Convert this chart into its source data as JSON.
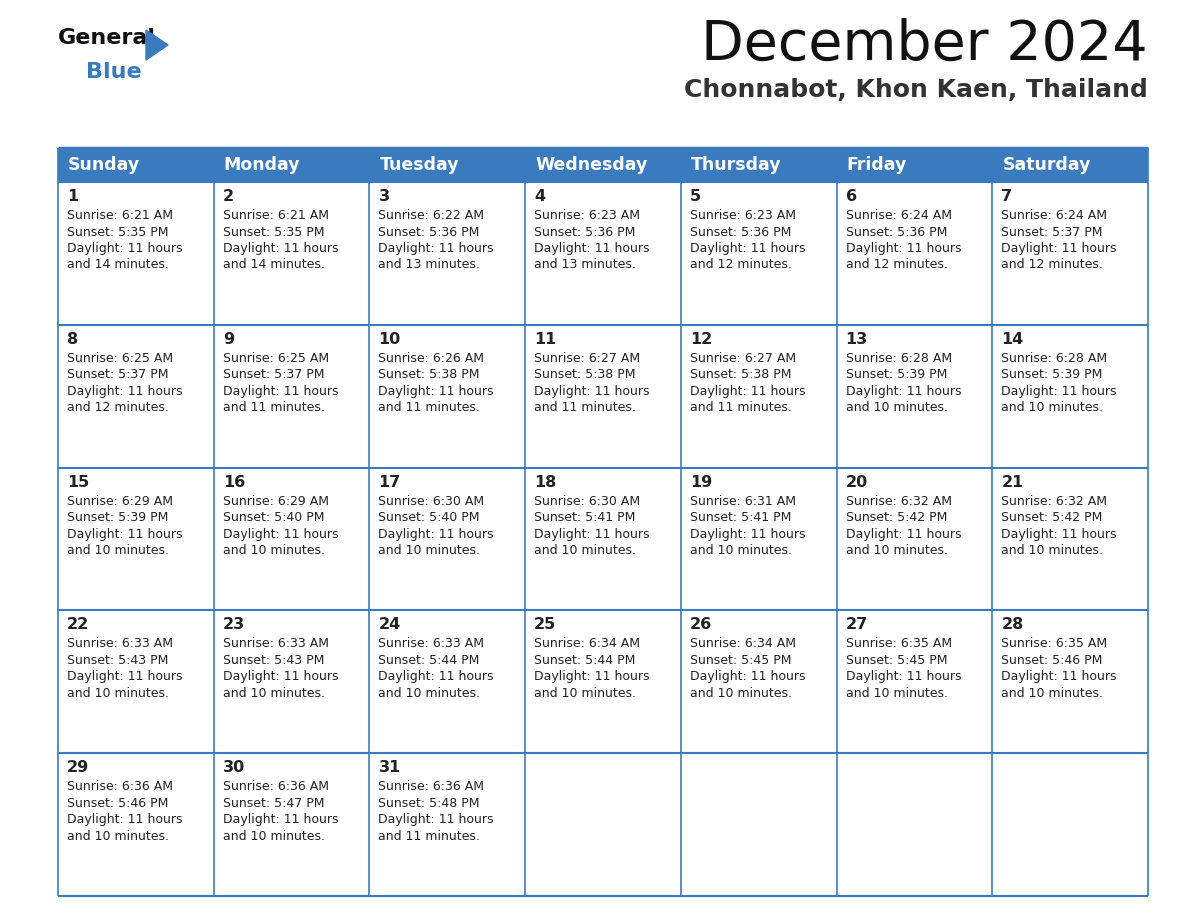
{
  "title": "December 2024",
  "subtitle": "Chonnabot, Khon Kaen, Thailand",
  "header_color": "#3a7bbf",
  "header_text_color": "#ffffff",
  "border_color": "#3a7bbf",
  "text_color": "#222222",
  "cell_bg_color": "#ffffff",
  "days_of_week": [
    "Sunday",
    "Monday",
    "Tuesday",
    "Wednesday",
    "Thursday",
    "Friday",
    "Saturday"
  ],
  "calendar": [
    [
      {
        "day": 1,
        "sunrise": "6:21 AM",
        "sunset": "5:35 PM",
        "daylight_hours": 11,
        "daylight_minutes": 14
      },
      {
        "day": 2,
        "sunrise": "6:21 AM",
        "sunset": "5:35 PM",
        "daylight_hours": 11,
        "daylight_minutes": 14
      },
      {
        "day": 3,
        "sunrise": "6:22 AM",
        "sunset": "5:36 PM",
        "daylight_hours": 11,
        "daylight_minutes": 13
      },
      {
        "day": 4,
        "sunrise": "6:23 AM",
        "sunset": "5:36 PM",
        "daylight_hours": 11,
        "daylight_minutes": 13
      },
      {
        "day": 5,
        "sunrise": "6:23 AM",
        "sunset": "5:36 PM",
        "daylight_hours": 11,
        "daylight_minutes": 12
      },
      {
        "day": 6,
        "sunrise": "6:24 AM",
        "sunset": "5:36 PM",
        "daylight_hours": 11,
        "daylight_minutes": 12
      },
      {
        "day": 7,
        "sunrise": "6:24 AM",
        "sunset": "5:37 PM",
        "daylight_hours": 11,
        "daylight_minutes": 12
      }
    ],
    [
      {
        "day": 8,
        "sunrise": "6:25 AM",
        "sunset": "5:37 PM",
        "daylight_hours": 11,
        "daylight_minutes": 12
      },
      {
        "day": 9,
        "sunrise": "6:25 AM",
        "sunset": "5:37 PM",
        "daylight_hours": 11,
        "daylight_minutes": 11
      },
      {
        "day": 10,
        "sunrise": "6:26 AM",
        "sunset": "5:38 PM",
        "daylight_hours": 11,
        "daylight_minutes": 11
      },
      {
        "day": 11,
        "sunrise": "6:27 AM",
        "sunset": "5:38 PM",
        "daylight_hours": 11,
        "daylight_minutes": 11
      },
      {
        "day": 12,
        "sunrise": "6:27 AM",
        "sunset": "5:38 PM",
        "daylight_hours": 11,
        "daylight_minutes": 11
      },
      {
        "day": 13,
        "sunrise": "6:28 AM",
        "sunset": "5:39 PM",
        "daylight_hours": 11,
        "daylight_minutes": 10
      },
      {
        "day": 14,
        "sunrise": "6:28 AM",
        "sunset": "5:39 PM",
        "daylight_hours": 11,
        "daylight_minutes": 10
      }
    ],
    [
      {
        "day": 15,
        "sunrise": "6:29 AM",
        "sunset": "5:39 PM",
        "daylight_hours": 11,
        "daylight_minutes": 10
      },
      {
        "day": 16,
        "sunrise": "6:29 AM",
        "sunset": "5:40 PM",
        "daylight_hours": 11,
        "daylight_minutes": 10
      },
      {
        "day": 17,
        "sunrise": "6:30 AM",
        "sunset": "5:40 PM",
        "daylight_hours": 11,
        "daylight_minutes": 10
      },
      {
        "day": 18,
        "sunrise": "6:30 AM",
        "sunset": "5:41 PM",
        "daylight_hours": 11,
        "daylight_minutes": 10
      },
      {
        "day": 19,
        "sunrise": "6:31 AM",
        "sunset": "5:41 PM",
        "daylight_hours": 11,
        "daylight_minutes": 10
      },
      {
        "day": 20,
        "sunrise": "6:32 AM",
        "sunset": "5:42 PM",
        "daylight_hours": 11,
        "daylight_minutes": 10
      },
      {
        "day": 21,
        "sunrise": "6:32 AM",
        "sunset": "5:42 PM",
        "daylight_hours": 11,
        "daylight_minutes": 10
      }
    ],
    [
      {
        "day": 22,
        "sunrise": "6:33 AM",
        "sunset": "5:43 PM",
        "daylight_hours": 11,
        "daylight_minutes": 10
      },
      {
        "day": 23,
        "sunrise": "6:33 AM",
        "sunset": "5:43 PM",
        "daylight_hours": 11,
        "daylight_minutes": 10
      },
      {
        "day": 24,
        "sunrise": "6:33 AM",
        "sunset": "5:44 PM",
        "daylight_hours": 11,
        "daylight_minutes": 10
      },
      {
        "day": 25,
        "sunrise": "6:34 AM",
        "sunset": "5:44 PM",
        "daylight_hours": 11,
        "daylight_minutes": 10
      },
      {
        "day": 26,
        "sunrise": "6:34 AM",
        "sunset": "5:45 PM",
        "daylight_hours": 11,
        "daylight_minutes": 10
      },
      {
        "day": 27,
        "sunrise": "6:35 AM",
        "sunset": "5:45 PM",
        "daylight_hours": 11,
        "daylight_minutes": 10
      },
      {
        "day": 28,
        "sunrise": "6:35 AM",
        "sunset": "5:46 PM",
        "daylight_hours": 11,
        "daylight_minutes": 10
      }
    ],
    [
      {
        "day": 29,
        "sunrise": "6:36 AM",
        "sunset": "5:46 PM",
        "daylight_hours": 11,
        "daylight_minutes": 10
      },
      {
        "day": 30,
        "sunrise": "6:36 AM",
        "sunset": "5:47 PM",
        "daylight_hours": 11,
        "daylight_minutes": 10
      },
      {
        "day": 31,
        "sunrise": "6:36 AM",
        "sunset": "5:48 PM",
        "daylight_hours": 11,
        "daylight_minutes": 11
      },
      null,
      null,
      null,
      null
    ]
  ]
}
